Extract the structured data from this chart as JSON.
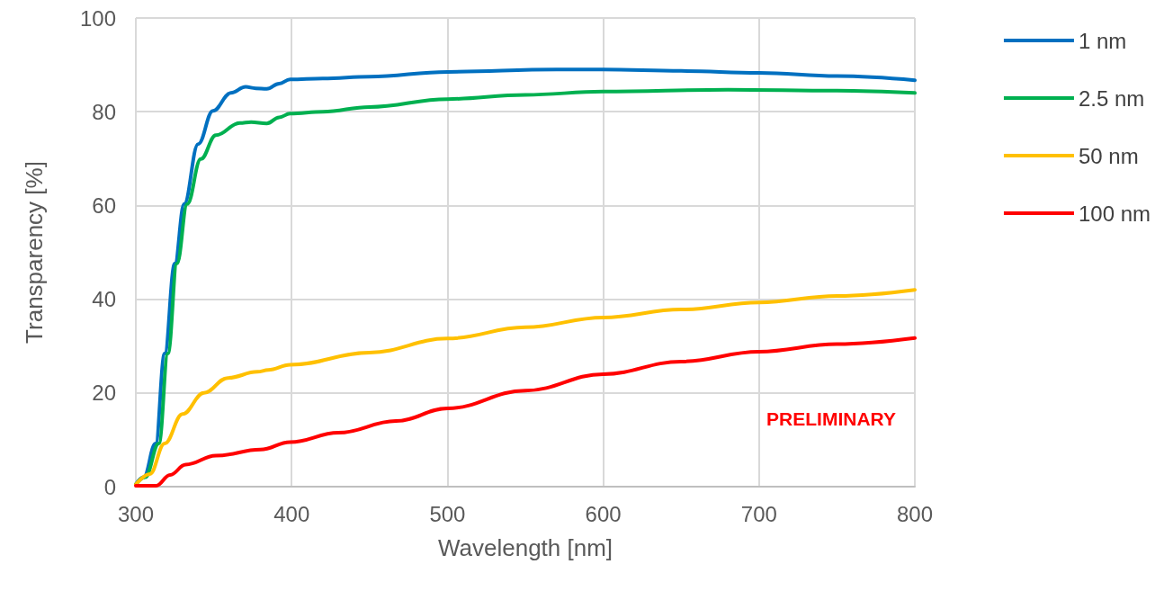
{
  "chart_data": {
    "type": "line",
    "xlabel": "Wavelength [nm]",
    "ylabel": "Transparency [%]",
    "xlim": [
      300,
      800
    ],
    "xticks": [
      300,
      400,
      500,
      600,
      700,
      800
    ],
    "ylim": [
      0,
      100
    ],
    "yticks": [
      0,
      20,
      40,
      60,
      80,
      100
    ],
    "grid": true,
    "legend": "top right",
    "marker": "none",
    "line_style": "solid",
    "annotations": [
      "PRELIMINARY"
    ],
    "series": [
      {
        "name": "1 nm",
        "color": "#0070c0",
        "x": [
          300,
          305,
          312.7,
          318.5,
          325,
          331,
          340,
          349.5,
          361,
          370.5,
          377,
          384,
          392,
          399,
          420,
          450,
          500,
          570,
          600,
          650,
          700,
          750,
          800
        ],
        "values": [
          0.5,
          2,
          9.2,
          28.4,
          47.6,
          60.3,
          73.1,
          80.2,
          84,
          85.3,
          85,
          84.9,
          86,
          86.9,
          87.1,
          87.5,
          88.5,
          89,
          89,
          88.7,
          88.3,
          87.6,
          86.7
        ]
      },
      {
        "name": "2.5 nm",
        "color": "#00b050",
        "x": [
          300,
          306,
          314.8,
          320.6,
          326.4,
          333,
          341.7,
          351.4,
          366.7,
          374,
          384,
          392,
          399,
          420,
          450,
          500,
          550,
          600,
          680,
          750,
          800
        ],
        "values": [
          0.5,
          2,
          9.2,
          28.4,
          47.6,
          60.3,
          69.9,
          75,
          77.6,
          77.8,
          77.5,
          78.8,
          79.6,
          80,
          81,
          82.7,
          83.6,
          84.3,
          84.7,
          84.5,
          84
        ]
      },
      {
        "name": "50 nm",
        "color": "#ffc000",
        "x": [
          300,
          309,
          318.5,
          330,
          343.7,
          359,
          378,
          385,
          399,
          450,
          500,
          550,
          600,
          650,
          700,
          750,
          800
        ],
        "values": [
          0.5,
          2.7,
          9.2,
          15.5,
          20,
          23.2,
          24.5,
          24.9,
          26,
          28.6,
          31.6,
          34,
          36.1,
          37.8,
          39.3,
          40.7,
          42
        ]
      },
      {
        "name": "100 nm",
        "color": "#ff0000",
        "x": [
          300,
          313,
          322,
          332,
          351.4,
          380,
          399,
          430,
          466.9,
          500,
          550,
          600,
          650,
          700,
          750,
          800
        ],
        "values": [
          0.2,
          0.2,
          2.5,
          4.7,
          6.6,
          7.9,
          9.5,
          11.5,
          14,
          16.7,
          20.5,
          24,
          26.7,
          28.8,
          30.4,
          31.7
        ]
      }
    ]
  }
}
